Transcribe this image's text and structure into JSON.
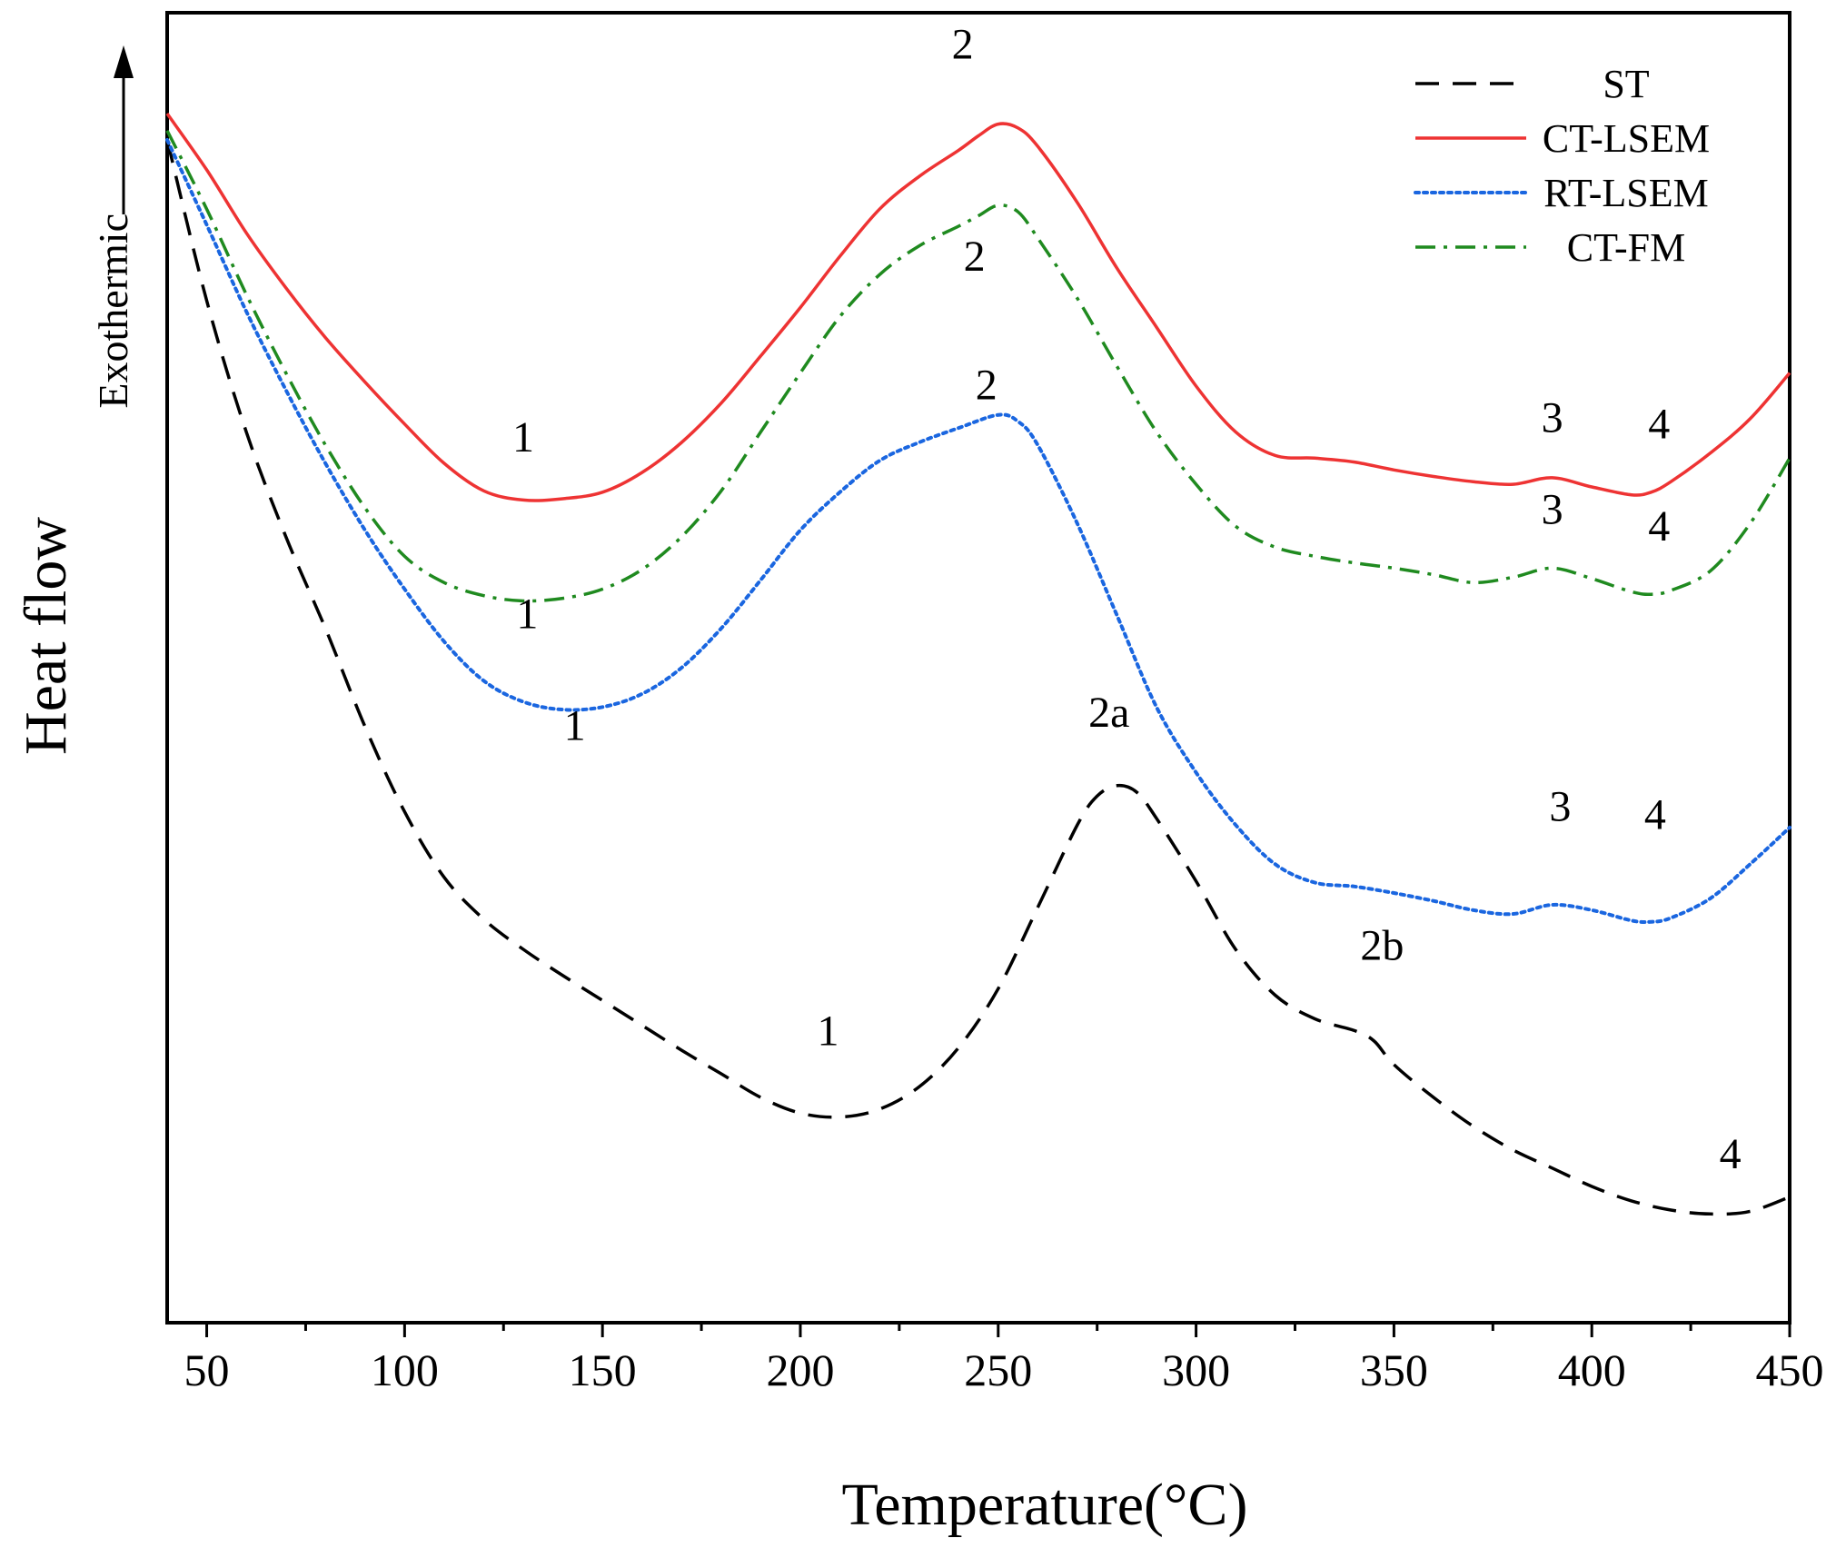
{
  "chart_data": {
    "type": "line",
    "title": "",
    "xlabel": "Temperature(°C)",
    "ylabel": "Heat flow",
    "y_direction_label": "Exothermic",
    "xlim": [
      40,
      450
    ],
    "ylim": [
      0,
      1000
    ],
    "x_ticks": [
      50,
      100,
      150,
      200,
      250,
      300,
      350,
      400,
      450
    ],
    "x_minor_step": 25,
    "legend_position": "top-right",
    "series": [
      {
        "name": "ST",
        "color": "#000000",
        "style": "dashed",
        "points": [
          [
            40,
            903
          ],
          [
            50,
            780
          ],
          [
            60,
            680
          ],
          [
            70,
            600
          ],
          [
            80,
            530
          ],
          [
            90,
            455
          ],
          [
            100,
            390
          ],
          [
            110,
            340
          ],
          [
            120,
            308
          ],
          [
            130,
            285
          ],
          [
            140,
            265
          ],
          [
            150,
            246
          ],
          [
            160,
            227
          ],
          [
            170,
            208
          ],
          [
            180,
            190
          ],
          [
            190,
            172
          ],
          [
            200,
            160
          ],
          [
            210,
            157
          ],
          [
            220,
            163
          ],
          [
            230,
            180
          ],
          [
            240,
            210
          ],
          [
            250,
            255
          ],
          [
            260,
            317
          ],
          [
            270,
            380
          ],
          [
            275,
            402
          ],
          [
            280,
            410
          ],
          [
            285,
            405
          ],
          [
            290,
            385
          ],
          [
            300,
            337
          ],
          [
            310,
            285
          ],
          [
            320,
            250
          ],
          [
            330,
            232
          ],
          [
            340,
            223
          ],
          [
            345,
            215
          ],
          [
            350,
            197
          ],
          [
            360,
            172
          ],
          [
            370,
            150
          ],
          [
            380,
            132
          ],
          [
            390,
            118
          ],
          [
            400,
            104
          ],
          [
            410,
            93
          ],
          [
            420,
            86
          ],
          [
            430,
            83
          ],
          [
            440,
            85
          ],
          [
            450,
            96
          ]
        ]
      },
      {
        "name": "CT-LSEM",
        "color": "#ee3333",
        "style": "solid",
        "points": [
          [
            40,
            923
          ],
          [
            50,
            880
          ],
          [
            60,
            832
          ],
          [
            70,
            790
          ],
          [
            80,
            752
          ],
          [
            90,
            718
          ],
          [
            100,
            686
          ],
          [
            110,
            656
          ],
          [
            120,
            635
          ],
          [
            130,
            628
          ],
          [
            140,
            629
          ],
          [
            150,
            634
          ],
          [
            160,
            649
          ],
          [
            170,
            672
          ],
          [
            180,
            702
          ],
          [
            190,
            738
          ],
          [
            200,
            775
          ],
          [
            210,
            814
          ],
          [
            220,
            850
          ],
          [
            230,
            875
          ],
          [
            240,
            895
          ],
          [
            245,
            906
          ],
          [
            250,
            915
          ],
          [
            255,
            912
          ],
          [
            260,
            898
          ],
          [
            270,
            855
          ],
          [
            280,
            805
          ],
          [
            290,
            760
          ],
          [
            300,
            715
          ],
          [
            310,
            680
          ],
          [
            320,
            662
          ],
          [
            330,
            660
          ],
          [
            340,
            657
          ],
          [
            350,
            651
          ],
          [
            360,
            646
          ],
          [
            370,
            642
          ],
          [
            380,
            640
          ],
          [
            390,
            645
          ],
          [
            400,
            638
          ],
          [
            410,
            632
          ],
          [
            415,
            634
          ],
          [
            420,
            642
          ],
          [
            430,
            664
          ],
          [
            440,
            690
          ],
          [
            450,
            725
          ]
        ]
      },
      {
        "name": "RT-LSEM",
        "color": "#1a66e0",
        "style": "dotted",
        "points": [
          [
            40,
            903
          ],
          [
            50,
            838
          ],
          [
            60,
            772
          ],
          [
            70,
            712
          ],
          [
            80,
            656
          ],
          [
            90,
            605
          ],
          [
            100,
            560
          ],
          [
            110,
            520
          ],
          [
            120,
            490
          ],
          [
            130,
            474
          ],
          [
            140,
            468
          ],
          [
            150,
            470
          ],
          [
            160,
            480
          ],
          [
            170,
            500
          ],
          [
            180,
            530
          ],
          [
            190,
            567
          ],
          [
            200,
            605
          ],
          [
            210,
            634
          ],
          [
            220,
            658
          ],
          [
            230,
            672
          ],
          [
            240,
            683
          ],
          [
            250,
            693
          ],
          [
            255,
            688
          ],
          [
            260,
            670
          ],
          [
            270,
            610
          ],
          [
            280,
            540
          ],
          [
            290,
            470
          ],
          [
            300,
            420
          ],
          [
            310,
            380
          ],
          [
            320,
            350
          ],
          [
            330,
            336
          ],
          [
            340,
            333
          ],
          [
            350,
            328
          ],
          [
            360,
            322
          ],
          [
            370,
            315
          ],
          [
            380,
            312
          ],
          [
            390,
            319
          ],
          [
            400,
            315
          ],
          [
            410,
            307
          ],
          [
            415,
            306
          ],
          [
            420,
            309
          ],
          [
            430,
            324
          ],
          [
            440,
            350
          ],
          [
            450,
            378
          ]
        ]
      },
      {
        "name": "CT-FM",
        "color": "#1f8a1f",
        "style": "dashdot",
        "points": [
          [
            40,
            910
          ],
          [
            50,
            850
          ],
          [
            60,
            785
          ],
          [
            70,
            725
          ],
          [
            80,
            670
          ],
          [
            90,
            622
          ],
          [
            100,
            585
          ],
          [
            110,
            565
          ],
          [
            120,
            555
          ],
          [
            130,
            551
          ],
          [
            140,
            553
          ],
          [
            150,
            560
          ],
          [
            160,
            575
          ],
          [
            170,
            600
          ],
          [
            180,
            635
          ],
          [
            190,
            680
          ],
          [
            200,
            725
          ],
          [
            210,
            768
          ],
          [
            220,
            800
          ],
          [
            230,
            822
          ],
          [
            240,
            837
          ],
          [
            245,
            845
          ],
          [
            250,
            853
          ],
          [
            255,
            848
          ],
          [
            260,
            828
          ],
          [
            270,
            782
          ],
          [
            280,
            730
          ],
          [
            290,
            680
          ],
          [
            300,
            640
          ],
          [
            310,
            608
          ],
          [
            320,
            592
          ],
          [
            330,
            585
          ],
          [
            340,
            580
          ],
          [
            350,
            576
          ],
          [
            360,
            571
          ],
          [
            370,
            565
          ],
          [
            380,
            569
          ],
          [
            390,
            576
          ],
          [
            400,
            568
          ],
          [
            410,
            558
          ],
          [
            415,
            556
          ],
          [
            420,
            559
          ],
          [
            430,
            574
          ],
          [
            440,
            610
          ],
          [
            450,
            660
          ]
        ]
      }
    ],
    "annotations": [
      {
        "series": "CT-LSEM",
        "text": "1",
        "x": 130,
        "y": 665
      },
      {
        "series": "CT-LSEM",
        "text": "2",
        "x": 241,
        "y": 965
      },
      {
        "series": "CT-LSEM",
        "text": "3",
        "x": 390,
        "y": 680
      },
      {
        "series": "CT-LSEM",
        "text": "4",
        "x": 417,
        "y": 675
      },
      {
        "series": "CT-FM",
        "text": "1",
        "x": 131,
        "y": 530
      },
      {
        "series": "CT-FM",
        "text": "2",
        "x": 244,
        "y": 803
      },
      {
        "series": "CT-FM",
        "text": "3",
        "x": 390,
        "y": 610
      },
      {
        "series": "CT-FM",
        "text": "4",
        "x": 417,
        "y": 597
      },
      {
        "series": "RT-LSEM",
        "text": "1",
        "x": 143,
        "y": 445
      },
      {
        "series": "RT-LSEM",
        "text": "2",
        "x": 247,
        "y": 705
      },
      {
        "series": "RT-LSEM",
        "text": "3",
        "x": 392,
        "y": 383
      },
      {
        "series": "RT-LSEM",
        "text": "4",
        "x": 416,
        "y": 377
      },
      {
        "series": "ST",
        "text": "1",
        "x": 207,
        "y": 212
      },
      {
        "series": "ST",
        "text": "2a",
        "x": 278,
        "y": 455
      },
      {
        "series": "ST",
        "text": "2b",
        "x": 347,
        "y": 277
      },
      {
        "series": "ST",
        "text": "4",
        "x": 435,
        "y": 118
      }
    ]
  }
}
